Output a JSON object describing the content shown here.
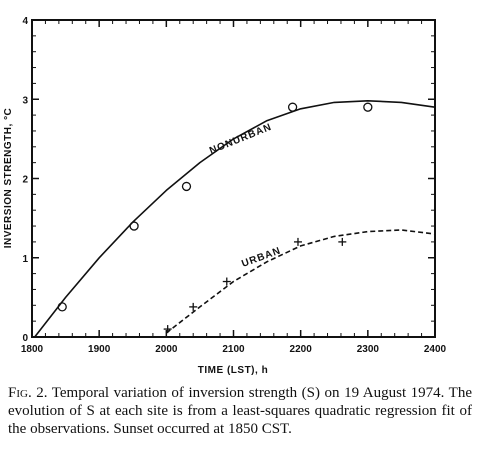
{
  "chart_data": {
    "type": "line",
    "title": "",
    "xlabel": "TIME (LST), h",
    "ylabel": "INVERSION STRENGTH, °C",
    "xlim": [
      1800,
      2400
    ],
    "ylim": [
      0,
      4
    ],
    "x_ticks": [
      "1800",
      "1900",
      "2000",
      "2100",
      "2200",
      "2300",
      "2400"
    ],
    "y_ticks": [
      "0",
      "1",
      "2",
      "3",
      "4"
    ],
    "grid": false,
    "legend": "none",
    "series": [
      {
        "name": "NONURBAN",
        "line_style": "solid",
        "marker": "circle",
        "fit_x": [
          1804,
          1850,
          1900,
          1950,
          2000,
          2050,
          2100,
          2150,
          2200,
          2250,
          2300,
          2350,
          2400
        ],
        "fit_y": [
          0.0,
          0.5,
          1.0,
          1.45,
          1.85,
          2.2,
          2.5,
          2.73,
          2.88,
          2.96,
          2.98,
          2.96,
          2.9
        ],
        "obs_x": [
          1845,
          1952,
          2030,
          2188,
          2300
        ],
        "obs_y": [
          0.38,
          1.4,
          1.9,
          2.9,
          2.9
        ]
      },
      {
        "name": "URBAN",
        "line_style": "dashed",
        "marker": "plus",
        "fit_x": [
          2000,
          2050,
          2100,
          2150,
          2200,
          2250,
          2300,
          2350,
          2400
        ],
        "fit_y": [
          0.05,
          0.38,
          0.7,
          0.95,
          1.15,
          1.27,
          1.33,
          1.35,
          1.3
        ],
        "obs_x": [
          2002,
          2040,
          2090,
          2196,
          2262
        ],
        "obs_y": [
          0.1,
          0.38,
          0.7,
          1.2,
          1.2
        ]
      }
    ]
  },
  "caption": {
    "fig_label": "Fig. 2.",
    "text": " Temporal variation of inversion strength (S) on 19 August 1974. The evolution of S at each site is from a least-squares quadratic regression fit of the observations. Sunset occurred at 1850 CST."
  }
}
